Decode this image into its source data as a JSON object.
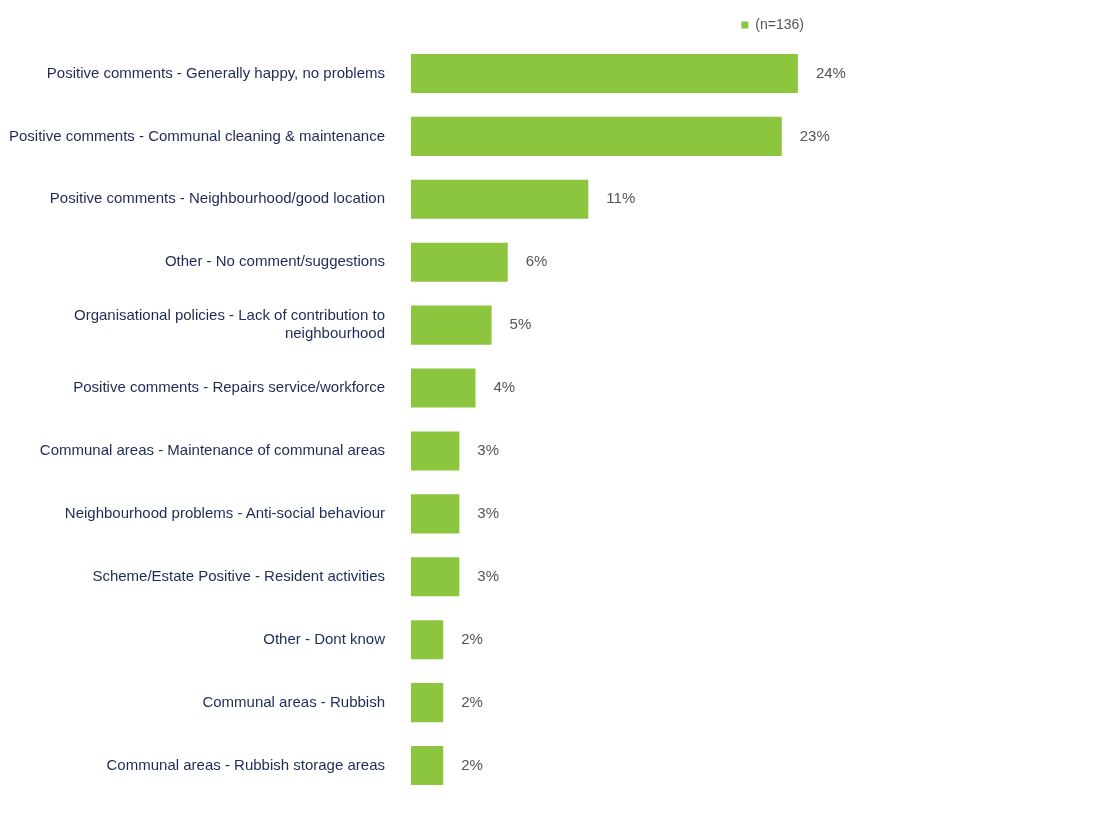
{
  "chart_data": {
    "type": "bar",
    "orientation": "horizontal",
    "legend": "top right",
    "categories": [
      "Positive comments - Generally happy, no problems",
      "Positive comments - Communal cleaning & maintenance",
      "Positive comments - Neighbourhood/good location",
      "Other - No comment/suggestions",
      "Organisational policies - Lack of contribution to neighbourhood",
      "Positive comments - Repairs service/workforce",
      "Communal areas - Maintenance of communal areas",
      "Neighbourhood problems - Anti-social behaviour",
      "Scheme/Estate Positive - Resident activities",
      "Other - Dont know",
      "Communal areas - Rubbish",
      "Communal areas - Rubbish storage areas"
    ],
    "series": [
      {
        "name": "(n=136)",
        "color": "#8cc63f",
        "values": [
          24,
          23,
          11,
          6,
          5,
          4,
          3,
          3,
          3,
          2,
          2,
          2
        ],
        "value_labels": [
          "24%",
          "23%",
          "11%",
          "6%",
          "5%",
          "4%",
          "3%",
          "3%",
          "3%",
          "2%",
          "2%",
          "2%"
        ]
      }
    ]
  }
}
